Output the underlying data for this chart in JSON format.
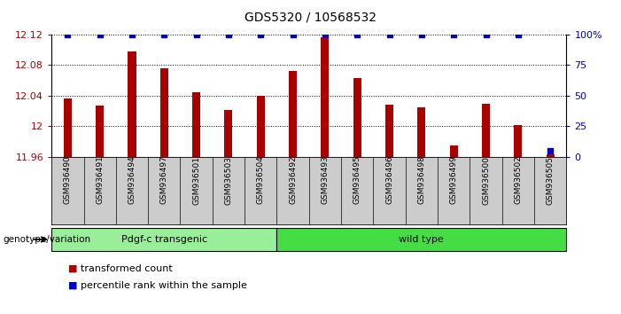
{
  "title": "GDS5320 / 10568532",
  "samples": [
    "GSM936490",
    "GSM936491",
    "GSM936494",
    "GSM936497",
    "GSM936501",
    "GSM936503",
    "GSM936504",
    "GSM936492",
    "GSM936493",
    "GSM936495",
    "GSM936496",
    "GSM936498",
    "GSM936499",
    "GSM936500",
    "GSM936502",
    "GSM936505"
  ],
  "transformed_count": [
    12.037,
    12.027,
    12.098,
    12.076,
    12.045,
    12.022,
    12.04,
    12.072,
    12.117,
    12.063,
    12.028,
    12.025,
    11.975,
    12.029,
    12.002,
    11.963
  ],
  "percentile_rank": [
    100,
    100,
    100,
    100,
    100,
    100,
    100,
    100,
    100,
    100,
    100,
    100,
    100,
    100,
    100,
    5
  ],
  "ylim_left": [
    11.96,
    12.12
  ],
  "ylim_right": [
    0,
    100
  ],
  "yticks_left": [
    11.96,
    12.0,
    12.04,
    12.08,
    12.12
  ],
  "ytick_labels_left": [
    "11.96",
    "12",
    "12.04",
    "12.08",
    "12.12"
  ],
  "yticks_right": [
    0,
    25,
    50,
    75,
    100
  ],
  "ytick_labels_right": [
    "0",
    "25",
    "50",
    "75",
    "100%"
  ],
  "bar_color": "#aa0000",
  "percentile_color": "#0000bb",
  "groups": [
    {
      "label": "Pdgf-c transgenic",
      "start": 0,
      "end": 7,
      "color": "#99ee99"
    },
    {
      "label": "wild type",
      "start": 7,
      "end": 16,
      "color": "#44dd44"
    }
  ],
  "group_label": "genotype/variation",
  "legend_items": [
    {
      "label": "transformed count",
      "color": "#aa0000"
    },
    {
      "label": "percentile rank within the sample",
      "color": "#0000bb"
    }
  ],
  "background_color": "#ffffff",
  "tick_bg_color": "#cccccc",
  "bar_width": 0.25
}
